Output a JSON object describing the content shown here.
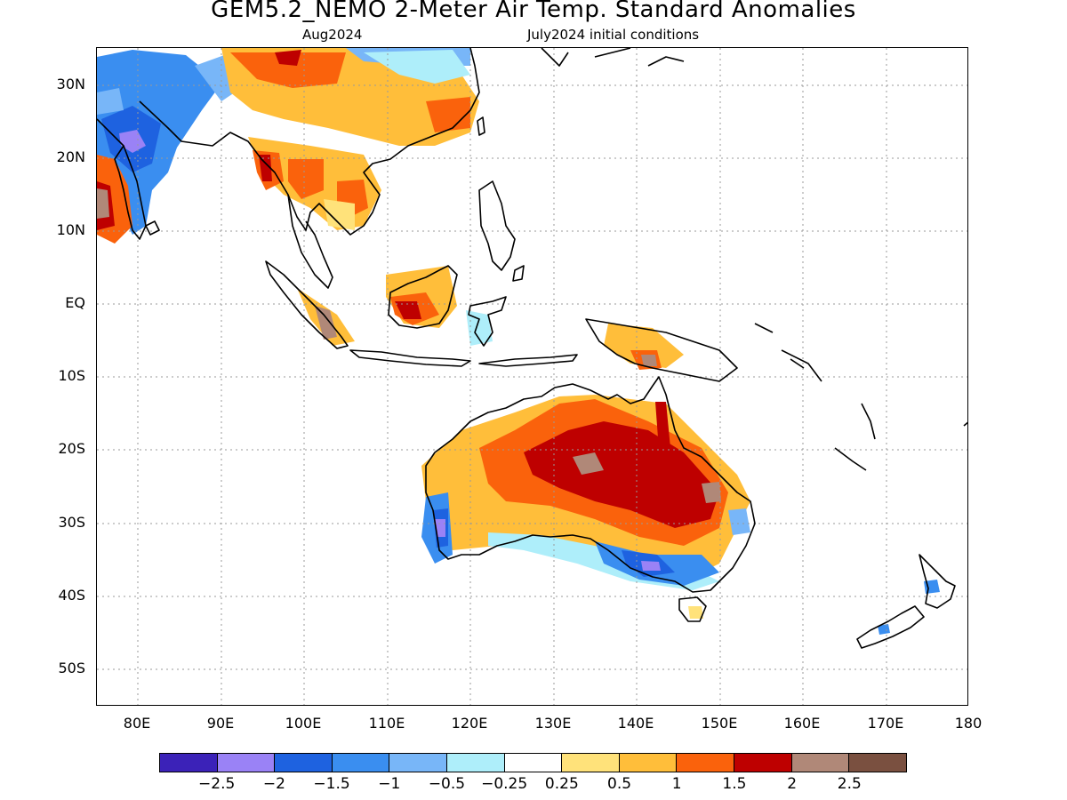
{
  "header": {
    "title": "GEM5.2_NEMO 2-Meter Air Temp. Standard Anomalies",
    "valid_month": "Aug2024",
    "initial_conditions": "July2024 initial conditions"
  },
  "map": {
    "region": "Indo-Pacific / Australia",
    "lat_labels": [
      "30N",
      "20N",
      "10N",
      "EQ",
      "10S",
      "20S",
      "30S",
      "40S",
      "50S"
    ],
    "lon_labels": [
      "80E",
      "90E",
      "100E",
      "110E",
      "120E",
      "130E",
      "140E",
      "150E",
      "160E",
      "170E",
      "180"
    ],
    "lat_range": [
      -55,
      35
    ],
    "lon_range": [
      75,
      180
    ],
    "grid": "dotted",
    "coastline_color": "#000000"
  },
  "legend": {
    "colors": [
      "#3b22b8",
      "#9a82f6",
      "#1e62e0",
      "#3a8ef0",
      "#78b6f8",
      "#aeeefa",
      "#ffffff",
      "#ffe27a",
      "#ffbe3a",
      "#fa620c",
      "#be0000",
      "#b08878",
      "#7a5040"
    ],
    "labels": [
      "−2.5",
      "−2",
      "−1.5",
      "−1",
      "−0.5",
      "−0.25",
      "0.25",
      "0.5",
      "1",
      "1.5",
      "2",
      "2.5"
    ]
  }
}
